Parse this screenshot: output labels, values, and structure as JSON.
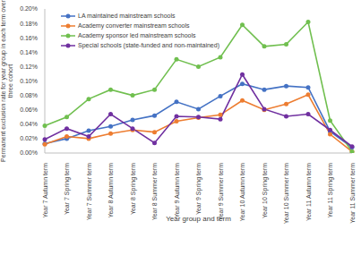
{
  "chart_data": {
    "type": "line",
    "y_label": "Permanent exclusion rate for year group in each term over three cohort",
    "x_label": "Year group and term",
    "categories": [
      "Year 7 Autumn term",
      "Year 7 Spring term",
      "Year 7 Summer term",
      "Year 8 Autumn term",
      "Year 8 Spring term",
      "Year 8 Summer term",
      "Year 9 Autumn term",
      "Year 9 Spring term",
      "Year 9 Summer term",
      "Year 10 Autumn term",
      "Year 10 Spring term",
      "Year 10 Summer term",
      "Year 11 Autumn term",
      "Year 11 Spring term",
      "Year 11 Summer term"
    ],
    "series": [
      {
        "name": "LA maintained mainstream schools",
        "color": "#4472c4",
        "marker": "circle",
        "values": [
          0.013,
          0.02,
          0.031,
          0.037,
          0.046,
          0.052,
          0.071,
          0.061,
          0.079,
          0.096,
          0.088,
          0.093,
          0.091,
          0.03,
          0.008
        ]
      },
      {
        "name": "Academy converter mainstream schools",
        "color": "#ed7d31",
        "marker": "circle",
        "values": [
          0.012,
          0.023,
          0.02,
          0.027,
          0.032,
          0.029,
          0.044,
          0.049,
          0.053,
          0.073,
          0.06,
          0.068,
          0.081,
          0.026,
          0.002
        ]
      },
      {
        "name": "Academy sponsor led mainstream schools",
        "color": "#70bf4f",
        "marker": "circle",
        "values": [
          0.038,
          0.05,
          0.075,
          0.088,
          0.08,
          0.088,
          0.13,
          0.12,
          0.133,
          0.178,
          0.148,
          0.151,
          0.182,
          0.045,
          0.002
        ]
      },
      {
        "name": "Special schools (state-funded and non-maintained)",
        "color": "#7030a0",
        "marker": "circle",
        "values": [
          0.019,
          0.034,
          0.023,
          0.054,
          0.034,
          0.014,
          0.051,
          0.05,
          0.047,
          0.109,
          0.061,
          0.051,
          0.054,
          0.032,
          0.009
        ]
      }
    ],
    "ylim": [
      0,
      0.2
    ],
    "yticks": [
      {
        "value": 0,
        "label": "0.00%"
      },
      {
        "value": 0.02,
        "label": "0.02%"
      },
      {
        "value": 0.04,
        "label": "0.04%"
      },
      {
        "value": 0.06,
        "label": "0.06%"
      },
      {
        "value": 0.08,
        "label": "0.08%"
      },
      {
        "value": 0.1,
        "label": "0.10%"
      },
      {
        "value": 0.12,
        "label": "0.12%"
      },
      {
        "value": 0.14,
        "label": "0.14%"
      },
      {
        "value": 0.16,
        "label": "0.16%"
      },
      {
        "value": 0.18,
        "label": "0.18%"
      },
      {
        "value": 0.2,
        "label": "0.20%"
      }
    ],
    "grid": false,
    "legend": "top-left"
  }
}
